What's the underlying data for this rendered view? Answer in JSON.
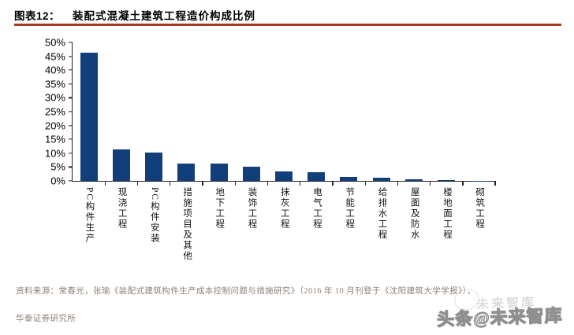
{
  "header": {
    "figure_label": "图表12：",
    "title": "装配式混凝土建筑工程造价构成比例",
    "rule_color": "#a93823"
  },
  "chart_data": {
    "type": "bar",
    "title": "装配式混凝土建筑工程造价构成比例",
    "categories": [
      "PC构件生产",
      "现浇工程",
      "PC构件安装",
      "措施项目及其他",
      "地下工程",
      "装饰工程",
      "抹灰工程",
      "电气工程",
      "节能工程",
      "给排水工程",
      "屋面及防水",
      "楼地面工程",
      "砌筑工程"
    ],
    "values": [
      46.4,
      11.3,
      10.1,
      6.3,
      6.2,
      5.1,
      3.3,
      3.2,
      1.4,
      1.0,
      0.7,
      0.4,
      0.1
    ],
    "unit": "%",
    "xlabel": "",
    "ylabel": "",
    "ylim": [
      0,
      50
    ],
    "y_tick_step": 5,
    "y_tick_labels": [
      "0%",
      "5%",
      "10%",
      "15%",
      "20%",
      "25%",
      "30%",
      "35%",
      "40%",
      "45%",
      "50%"
    ],
    "grid": false,
    "legend": "none",
    "bar_color": "#123e7c",
    "axis_color": "#222222"
  },
  "footer": {
    "source_line1": "资料来源：常春光，张瑜《装配式建筑构件生产成本控制问题与措施研究》（2016 年 10 月刊登于《沈阳建筑大学学报》），",
    "source_line2": "华泰证券研究所",
    "watermark": "头条@未来智库",
    "watermark_ghost": "未来智库"
  }
}
